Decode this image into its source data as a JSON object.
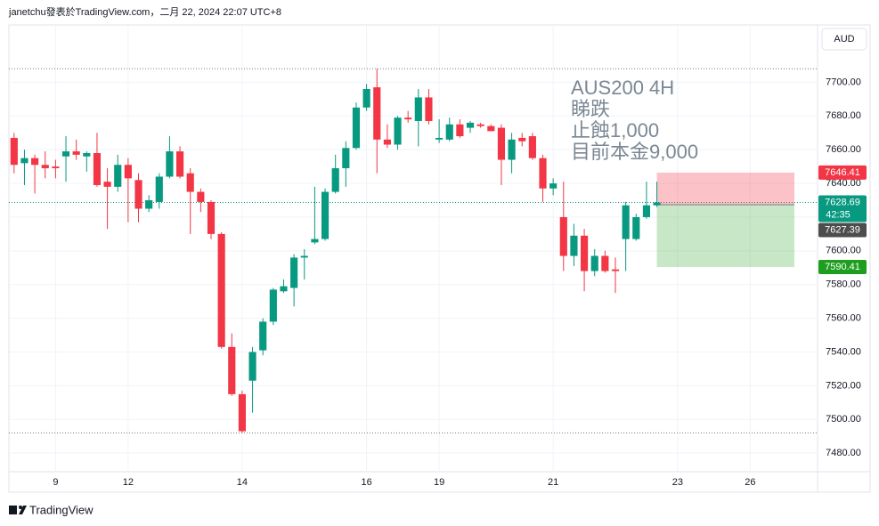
{
  "header": {
    "text": "janetchu發表於TradingView.com，二月 22, 2024 22:07 UTC+8"
  },
  "footer": {
    "brand": "TradingView"
  },
  "chart_data": {
    "type": "candlestick",
    "currency": "AUD",
    "annotation": [
      "AUS200  4H",
      "睇跌",
      "止蝕1,000",
      "目前本金9,000"
    ],
    "categories": [
      null,
      null,
      null,
      null,
      "9",
      null,
      null,
      null,
      null,
      null,
      null,
      "12",
      null,
      null,
      null,
      null,
      null,
      null,
      null,
      null,
      null,
      null,
      "14",
      null,
      null,
      null,
      null,
      null,
      null,
      null,
      null,
      null,
      null,
      null,
      "16",
      null,
      null,
      null,
      null,
      null,
      null,
      "19",
      null,
      null,
      null,
      null,
      null,
      null,
      null,
      null,
      null,
      null,
      "21",
      null,
      null,
      null,
      null,
      null,
      null,
      null,
      null,
      null,
      null,
      null,
      "23",
      null,
      null,
      null,
      null,
      null,
      null,
      "26",
      null,
      null,
      null,
      null,
      null,
      null
    ],
    "open": [
      7667,
      7652,
      7655,
      7651,
      7650,
      7656,
      7659,
      7656,
      7658,
      7641,
      7638,
      7651,
      7642,
      7625,
      7629,
      7644,
      7659,
      7646,
      7635,
      7629,
      7610,
      7543,
      7515,
      7523,
      7541,
      7558,
      7576,
      7578,
      7596,
      7605,
      7607,
      7635,
      7649,
      7661,
      7685,
      7697,
      7666,
      7663,
      7679,
      7677,
      7691,
      7666,
      7666,
      7675,
      7673,
      7675,
      7674,
      7673,
      7654,
      7667,
      7668,
      7655,
      7637,
      7620,
      7597,
      7609,
      7588,
      7597,
      7589,
      7607,
      7607,
      7620,
      7627,
      null,
      null,
      null,
      null,
      null,
      null,
      null,
      null,
      null,
      null,
      null,
      null,
      null,
      null,
      null
    ],
    "high": [
      7670,
      7660,
      7657,
      7659,
      7654,
      7668,
      7666,
      7659,
      7670,
      7649,
      7657,
      7655,
      7646,
      7633,
      7646,
      7668,
      7662,
      7649,
      7637,
      7630,
      7611,
      7551,
      7517,
      7543,
      7560,
      7578,
      7583,
      7598,
      7601,
      7638,
      7637,
      7657,
      7665,
      7688,
      7699,
      7708,
      7675,
      7680,
      7683,
      7696,
      7696,
      7678,
      7679,
      7678,
      7677,
      7676,
      7675,
      7675,
      7670,
      7670,
      7670,
      7657,
      7643,
      7641,
      7616,
      7613,
      7601,
      7600,
      7596,
      7629,
      7622,
      7641,
      7641,
      null,
      null,
      null,
      null,
      null,
      null,
      null,
      null,
      null,
      null,
      null,
      null,
      null,
      null,
      null
    ],
    "low": [
      7646,
      7639,
      7634,
      7643,
      7643,
      7641,
      7654,
      7647,
      7638,
      7613,
      7635,
      7617,
      7617,
      7623,
      7625,
      7643,
      7643,
      7610,
      7623,
      7607,
      7542,
      7514,
      7492,
      7504,
      7538,
      7556,
      7575,
      7567,
      7583,
      7604,
      7606,
      7634,
      7638,
      7660,
      7683,
      7646,
      7661,
      7660,
      7676,
      7662,
      7675,
      7664,
      7665,
      7667,
      7670,
      7673,
      7671,
      7639,
      7646,
      7662,
      7654,
      7629,
      7633,
      7588,
      7591,
      7576,
      7585,
      7587,
      7575,
      7588,
      7606,
      7619,
      7626,
      null,
      null,
      null,
      null,
      null,
      null,
      null,
      null,
      null,
      null,
      null,
      null,
      null,
      null,
      null
    ],
    "close": [
      7651,
      7655,
      7651,
      7649,
      7649,
      7659,
      7657,
      7658,
      7639,
      7638,
      7651,
      7643,
      7625,
      7630,
      7644,
      7659,
      7644,
      7635,
      7629,
      7610,
      7543,
      7515,
      7493,
      7540,
      7558,
      7577,
      7579,
      7596,
      7597,
      7607,
      7635,
      7649,
      7661,
      7685,
      7696,
      7666,
      7663,
      7679,
      7678,
      7691,
      7677,
      7667,
      7675,
      7668,
      7676,
      7674,
      7671,
      7654,
      7666,
      7665,
      7655,
      7637,
      7640,
      7597,
      7609,
      7588,
      7597,
      7588,
      7588,
      7627,
      7620,
      7627,
      7628.69,
      null,
      null,
      null,
      null,
      null,
      null,
      null,
      null,
      null,
      null,
      null,
      null,
      null,
      null,
      null
    ],
    "up_color": "#089981",
    "down_color": "#f23645",
    "ylim": [
      7469,
      7734
    ],
    "yticks": [
      {
        "value": 7480,
        "label": "7480.00"
      },
      {
        "value": 7500,
        "label": "7500.00"
      },
      {
        "value": 7520,
        "label": "7520.00"
      },
      {
        "value": 7540,
        "label": "7540.00"
      },
      {
        "value": 7560,
        "label": "7560.00"
      },
      {
        "value": 7580,
        "label": "7580.00"
      },
      {
        "value": 7600,
        "label": "7600.00"
      },
      {
        "value": 7620,
        "label": "7620.00"
      },
      {
        "value": 7640,
        "label": "7640.00"
      },
      {
        "value": 7660,
        "label": "7660.00"
      },
      {
        "value": 7680,
        "label": "7680.00"
      },
      {
        "value": 7700,
        "label": "7700.00"
      }
    ],
    "grid": true,
    "last_price": 7628.69,
    "countdown": "42:35",
    "position": {
      "stop": 7646.41,
      "entry": 7627.39,
      "target": 7590.41,
      "stop_color": "#f23645",
      "entry_color": "#4d4d4d",
      "target_color": "#1e9e1e"
    }
  }
}
